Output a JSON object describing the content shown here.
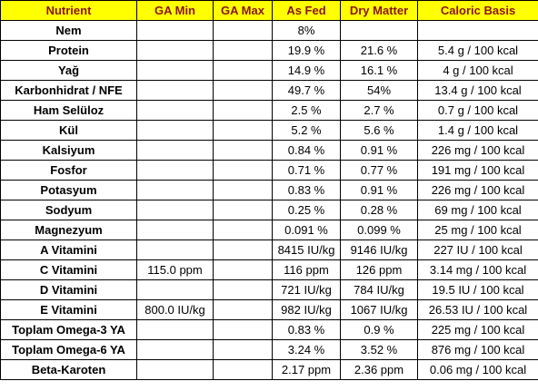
{
  "table": {
    "headers": [
      "Nutrient",
      "GA Min",
      "GA Max",
      "As Fed",
      "Dry Matter",
      "Caloric Basis"
    ],
    "header_bg": "#ffff00",
    "header_text_color": "#8b1414",
    "rows": [
      [
        "Nem",
        "",
        "",
        "8%",
        "",
        ""
      ],
      [
        "Protein",
        "",
        "",
        "19.9 %",
        "21.6 %",
        "5.4 g / 100 kcal"
      ],
      [
        "Yağ",
        "",
        "",
        "14.9 %",
        "16.1 %",
        "4 g / 100 kcal"
      ],
      [
        "Karbonhidrat / NFE",
        "",
        "",
        "49.7 %",
        "54%",
        "13.4 g / 100 kcal"
      ],
      [
        "Ham Selüloz",
        "",
        "",
        "2.5 %",
        "2.7 %",
        "0.7 g / 100 kcal"
      ],
      [
        "Kül",
        "",
        "",
        "5.2 %",
        "5.6 %",
        "1.4 g / 100 kcal"
      ],
      [
        "Kalsiyum",
        "",
        "",
        "0.84 %",
        "0.91 %",
        "226 mg / 100 kcal"
      ],
      [
        "Fosfor",
        "",
        "",
        "0.71 %",
        "0.77 %",
        "191 mg / 100 kcal"
      ],
      [
        "Potasyum",
        "",
        "",
        "0.83 %",
        "0.91 %",
        "226 mg / 100 kcal"
      ],
      [
        "Sodyum",
        "",
        "",
        "0.25 %",
        "0.28 %",
        "69 mg / 100 kcal"
      ],
      [
        "Magnezyum",
        "",
        "",
        "0.091 %",
        "0.099 %",
        "25 mg / 100 kcal"
      ],
      [
        "A Vitamini",
        "",
        "",
        "8415 IU/kg",
        "9146 IU/kg",
        "227 IU / 100 kcal"
      ],
      [
        "C Vitamini",
        "115.0 ppm",
        "",
        "116 ppm",
        "126 ppm",
        "3.14 mg / 100 kcal"
      ],
      [
        "D Vitamini",
        "",
        "",
        "721 IU/kg",
        "784 IU/kg",
        "19.5 IU / 100 kcal"
      ],
      [
        "E Vitamini",
        "800.0 IU/kg",
        "",
        "982 IU/kg",
        "1067 IU/kg",
        "26.53 IU / 100 kcal"
      ],
      [
        "Toplam Omega-3 YA",
        "",
        "",
        "0.83 %",
        "0.9 %",
        "225 mg / 100 kcal"
      ],
      [
        "Toplam Omega-6 YA",
        "",
        "",
        "3.24 %",
        "3.52 %",
        "876 mg / 100 kcal"
      ],
      [
        "Beta-Karoten",
        "",
        "",
        "2.17 ppm",
        "2.36 ppm",
        "0.06 mg / 100 kcal"
      ]
    ]
  }
}
